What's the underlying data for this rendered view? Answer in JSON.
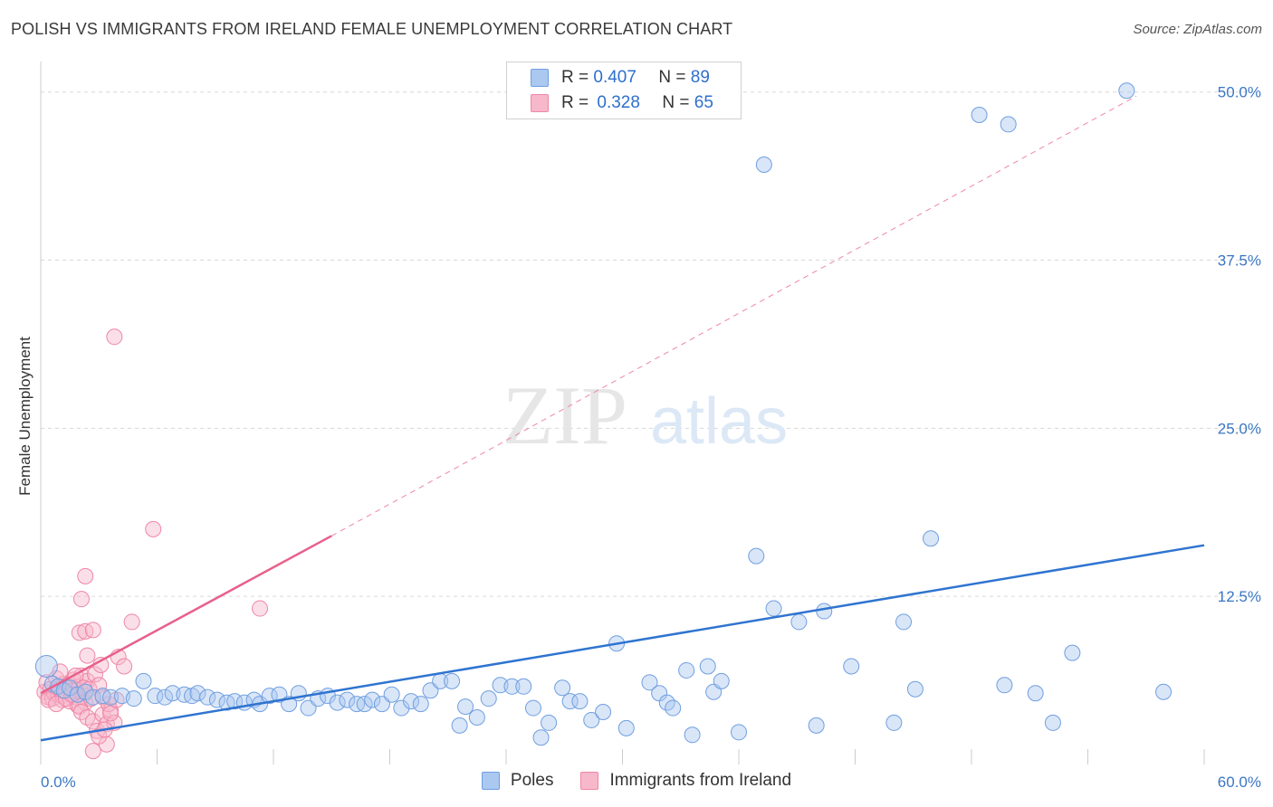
{
  "title": "POLISH VS IMMIGRANTS FROM IRELAND FEMALE UNEMPLOYMENT CORRELATION CHART",
  "source": "Source: ZipAtlas.com",
  "watermark": {
    "zip": "ZIP",
    "atlas": "atlas"
  },
  "legend": {
    "rows": [
      {
        "r_label": "R =",
        "r_value": "0.407",
        "n_label": "N =",
        "n_value": "89"
      },
      {
        "r_label": "R =",
        "r_value": "0.328",
        "n_label": "N =",
        "n_value": "65"
      }
    ]
  },
  "bottom_legend": {
    "series1": "Poles",
    "series2": "Immigrants from Ireland"
  },
  "colors": {
    "blue_fill": "#aac8f0",
    "blue_stroke": "#6f9fe0",
    "blue_line": "#2f74d0",
    "pink_fill": "#f7b8cb",
    "pink_stroke": "#ef86a6",
    "pink_line": "#e8608b",
    "grid": "#d8d8d8",
    "tick_text": "#3a76c4"
  },
  "chart_data": {
    "type": "scatter",
    "title": "POLISH VS IMMIGRANTS FROM IRELAND FEMALE UNEMPLOYMENT CORRELATION CHART",
    "xlabel": "",
    "ylabel": "Female Unemployment",
    "xlim": [
      0,
      60
    ],
    "ylim": [
      0,
      52
    ],
    "x_tick_labels": [
      "0.0%",
      "60.0%"
    ],
    "y_ticks": [
      12.5,
      25.0,
      37.5,
      50.0
    ],
    "y_tick_labels": [
      "12.5%",
      "25.0%",
      "37.5%",
      "50.0%"
    ],
    "grid": true,
    "legend_position": "top-center",
    "series": [
      {
        "name": "Poles",
        "r": 0.407,
        "n": 89,
        "trend": {
          "x": [
            0,
            60
          ],
          "y": [
            1.8,
            16.3
          ]
        },
        "points": [
          [
            0.3,
            7.3
          ],
          [
            0.6,
            6.0
          ],
          [
            0.9,
            5.8
          ],
          [
            1.2,
            5.5
          ],
          [
            1.5,
            5.7
          ],
          [
            1.9,
            5.2
          ],
          [
            2.3,
            5.4
          ],
          [
            2.7,
            5.0
          ],
          [
            3.2,
            5.1
          ],
          [
            3.6,
            5.0
          ],
          [
            4.2,
            5.1
          ],
          [
            4.8,
            4.9
          ],
          [
            5.3,
            6.2
          ],
          [
            5.9,
            5.1
          ],
          [
            6.4,
            5.0
          ],
          [
            6.8,
            5.3
          ],
          [
            7.4,
            5.2
          ],
          [
            7.8,
            5.1
          ],
          [
            8.1,
            5.3
          ],
          [
            8.6,
            5.0
          ],
          [
            9.1,
            4.8
          ],
          [
            9.6,
            4.6
          ],
          [
            10.0,
            4.7
          ],
          [
            10.5,
            4.6
          ],
          [
            11.0,
            4.8
          ],
          [
            11.3,
            4.5
          ],
          [
            11.8,
            5.1
          ],
          [
            12.3,
            5.2
          ],
          [
            12.8,
            4.5
          ],
          [
            13.3,
            5.3
          ],
          [
            13.8,
            4.2
          ],
          [
            14.3,
            4.9
          ],
          [
            14.8,
            5.1
          ],
          [
            15.3,
            4.6
          ],
          [
            15.8,
            4.8
          ],
          [
            16.3,
            4.5
          ],
          [
            16.7,
            4.5
          ],
          [
            17.1,
            4.8
          ],
          [
            17.6,
            4.5
          ],
          [
            18.1,
            5.2
          ],
          [
            18.6,
            4.2
          ],
          [
            19.1,
            4.7
          ],
          [
            19.6,
            4.5
          ],
          [
            20.1,
            5.5
          ],
          [
            20.6,
            6.2
          ],
          [
            21.2,
            6.2
          ],
          [
            21.6,
            2.9
          ],
          [
            21.9,
            4.3
          ],
          [
            22.5,
            3.5
          ],
          [
            23.1,
            4.9
          ],
          [
            23.7,
            5.9
          ],
          [
            24.3,
            5.8
          ],
          [
            24.9,
            5.8
          ],
          [
            25.4,
            4.2
          ],
          [
            25.8,
            2.0
          ],
          [
            26.2,
            3.1
          ],
          [
            26.9,
            5.7
          ],
          [
            27.3,
            4.7
          ],
          [
            27.8,
            4.7
          ],
          [
            28.4,
            3.3
          ],
          [
            29.0,
            3.9
          ],
          [
            29.7,
            9.0
          ],
          [
            30.2,
            2.7
          ],
          [
            31.4,
            6.1
          ],
          [
            31.9,
            5.3
          ],
          [
            32.3,
            4.6
          ],
          [
            32.6,
            4.2
          ],
          [
            33.3,
            7.0
          ],
          [
            33.6,
            2.2
          ],
          [
            34.4,
            7.3
          ],
          [
            34.7,
            5.4
          ],
          [
            35.1,
            6.2
          ],
          [
            36.0,
            2.4
          ],
          [
            36.9,
            15.5
          ],
          [
            37.3,
            44.6
          ],
          [
            37.8,
            11.6
          ],
          [
            39.1,
            10.6
          ],
          [
            40.0,
            2.9
          ],
          [
            40.4,
            11.4
          ],
          [
            41.8,
            7.3
          ],
          [
            44.0,
            3.1
          ],
          [
            44.5,
            10.6
          ],
          [
            45.1,
            5.6
          ],
          [
            45.9,
            16.8
          ],
          [
            48.4,
            48.3
          ],
          [
            49.7,
            5.9
          ],
          [
            49.9,
            47.6
          ],
          [
            51.3,
            5.3
          ],
          [
            52.2,
            3.1
          ],
          [
            53.2,
            8.3
          ],
          [
            57.9,
            5.4
          ],
          [
            56.0,
            50.1
          ]
        ]
      },
      {
        "name": "Immigrants from Ireland",
        "r": 0.328,
        "n": 65,
        "trend": {
          "x": [
            0,
            15
          ],
          "y": [
            5.3,
            17.0
          ]
        },
        "trend_extension": {
          "x": [
            15,
            56.5
          ],
          "y": [
            17.0,
            49.7
          ]
        },
        "points": [
          [
            0.2,
            5.4
          ],
          [
            0.3,
            6.1
          ],
          [
            0.4,
            5.0
          ],
          [
            0.5,
            5.6
          ],
          [
            0.6,
            4.9
          ],
          [
            0.7,
            5.3
          ],
          [
            0.8,
            6.4
          ],
          [
            0.9,
            5.2
          ],
          [
            1.0,
            5.7
          ],
          [
            1.1,
            5.1
          ],
          [
            1.1,
            4.8
          ],
          [
            1.2,
            6.0
          ],
          [
            1.3,
            5.4
          ],
          [
            1.4,
            5.9
          ],
          [
            1.5,
            4.7
          ],
          [
            1.6,
            5.5
          ],
          [
            1.7,
            6.3
          ],
          [
            1.8,
            5.0
          ],
          [
            1.9,
            4.4
          ],
          [
            2.0,
            5.8
          ],
          [
            2.1,
            6.6
          ],
          [
            2.2,
            5.1
          ],
          [
            2.3,
            4.6
          ],
          [
            2.4,
            6.2
          ],
          [
            0.4,
            4.8
          ],
          [
            0.8,
            4.5
          ],
          [
            1.0,
            6.9
          ],
          [
            1.3,
            4.9
          ],
          [
            1.6,
            5.2
          ],
          [
            1.8,
            6.6
          ],
          [
            2.0,
            4.3
          ],
          [
            2.2,
            5.7
          ],
          [
            2.5,
            5.6
          ],
          [
            2.6,
            4.9
          ],
          [
            2.8,
            6.7
          ],
          [
            3.0,
            5.9
          ],
          [
            2.0,
            9.8
          ],
          [
            2.3,
            9.9
          ],
          [
            2.4,
            8.1
          ],
          [
            2.7,
            10.0
          ],
          [
            2.1,
            3.9
          ],
          [
            2.4,
            3.5
          ],
          [
            2.7,
            3.2
          ],
          [
            2.9,
            2.5
          ],
          [
            3.2,
            3.7
          ],
          [
            3.4,
            3.0
          ],
          [
            3.6,
            4.0
          ],
          [
            3.8,
            3.1
          ],
          [
            3.4,
            1.5
          ],
          [
            2.7,
            1.0
          ],
          [
            3.0,
            2.1
          ],
          [
            3.3,
            2.6
          ],
          [
            3.5,
            4.5
          ],
          [
            3.1,
            7.4
          ],
          [
            3.2,
            5.0
          ],
          [
            3.6,
            3.8
          ],
          [
            4.0,
            8.0
          ],
          [
            4.3,
            7.3
          ],
          [
            4.7,
            10.6
          ],
          [
            3.9,
            4.8
          ],
          [
            3.8,
            31.8
          ],
          [
            5.8,
            17.5
          ],
          [
            11.3,
            11.6
          ],
          [
            2.3,
            14.0
          ],
          [
            2.1,
            12.3
          ]
        ]
      }
    ]
  }
}
